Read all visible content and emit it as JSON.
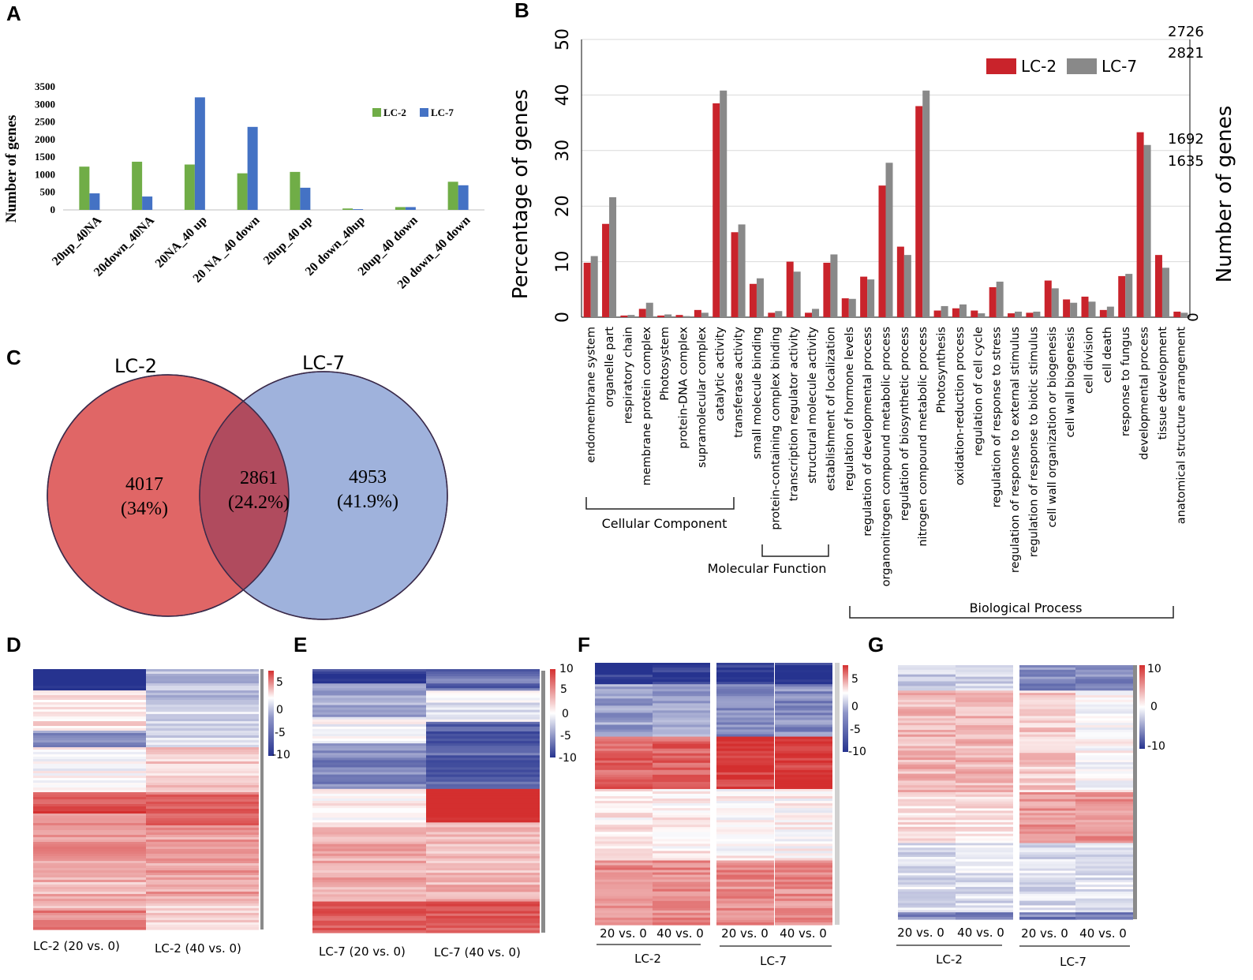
{
  "panel_labels": {
    "a": "A",
    "b": "B",
    "c": "C",
    "d": "D",
    "e": "E",
    "f": "F",
    "g": "G"
  },
  "chart_data": [
    {
      "panel": "A",
      "type": "bar",
      "ylabel": "Number of genes",
      "ylim": [
        0,
        3500
      ],
      "yticks": [
        0,
        500,
        1000,
        1500,
        2000,
        2500,
        3000,
        3500
      ],
      "categories": [
        "20up_40NA",
        "20down_40NA",
        "20NA_40 up",
        "20 NA _40 down",
        "20up_40 up",
        "20 down_40up",
        "20up_40 down",
        "20 down_40 down"
      ],
      "series": [
        {
          "name": "LC-2",
          "color": "#70ad47",
          "values": [
            1230,
            1370,
            1290,
            1040,
            1080,
            40,
            80,
            800
          ]
        },
        {
          "name": "LC-7",
          "color": "#4472c4",
          "values": [
            470,
            380,
            3200,
            2360,
            630,
            20,
            80,
            700
          ]
        }
      ],
      "legend_position": "top-right"
    },
    {
      "panel": "B",
      "type": "bar",
      "ylabel": "Percentage of genes",
      "y2label": "Number of genes",
      "ylim": [
        0,
        50
      ],
      "yticks": [
        0,
        10,
        20,
        30,
        40,
        50
      ],
      "right_axis_labels": [
        "2726",
        "2821",
        "1692",
        "1635",
        "0"
      ],
      "categories": [
        "endomembrane system",
        "organelle part",
        "respiratory chain",
        "membrane protein complex",
        "Photosystem",
        "protein-DNA complex",
        "supramolecular complex",
        "catalytic activity",
        "transferase activity",
        "small molecule binding",
        "protein-containing complex binding",
        "transcription regulator activity",
        "structural molecule activity",
        "establishment of localization",
        "regulation of hormone levels",
        "regulation of developmental process",
        "organonitrogen compound metabolic process",
        "regulation of biosynthetic process",
        "nitrogen compound metabolic process",
        "Photosynthesis",
        "oxidation-reduction process",
        "regulation of cell cycle",
        "regulation of response to stress",
        "regulation of response to external stimulus",
        "regulation of response to biotic stimulus",
        "cell wall organization or biogenesis",
        "cell wall biogenesis",
        "cell division",
        "cell death",
        "response to fungus",
        "developmental process",
        "tissue development",
        "anatomical structure arrangement"
      ],
      "series": [
        {
          "name": "LC-2",
          "color": "#c9232b",
          "values": [
            9.8,
            16.8,
            0.3,
            1.5,
            0.3,
            0.4,
            1.3,
            38.5,
            15.3,
            6.0,
            0.8,
            10.0,
            0.8,
            9.8,
            3.4,
            7.3,
            23.7,
            12.7,
            38.0,
            1.2,
            1.6,
            1.2,
            5.4,
            0.7,
            0.8,
            6.6,
            3.2,
            3.7,
            1.3,
            7.4,
            33.3,
            11.2,
            1.0
          ]
        },
        {
          "name": "LC-7",
          "color": "#898989",
          "values": [
            11.0,
            21.6,
            0.4,
            2.6,
            0.5,
            0.2,
            0.8,
            40.8,
            16.7,
            7.0,
            1.1,
            8.2,
            1.5,
            11.3,
            3.3,
            6.8,
            27.8,
            11.2,
            40.8,
            2.0,
            2.3,
            0.7,
            6.4,
            1.0,
            1.0,
            5.2,
            2.6,
            2.8,
            1.9,
            7.8,
            31.0,
            8.9,
            0.8
          ]
        }
      ],
      "groups": [
        "Cellular Component",
        "Molecular Function",
        "Biological Process"
      ],
      "legend_position": "top-right"
    }
  ],
  "venn": {
    "label_left": "LC-2",
    "label_right": "LC-7",
    "left_count": "4017",
    "left_pct": "(34%)",
    "mid_count": "2861",
    "mid_pct": "(24.2%)",
    "right_count": "4953",
    "right_pct": "(41.9%)"
  },
  "heatmaps": {
    "d": {
      "scale": [
        "5",
        "0",
        "-5",
        "-10"
      ],
      "cols": [
        "LC-2 (20 vs. 0)",
        "LC-2 (40 vs. 0)"
      ]
    },
    "e": {
      "scale": [
        "10",
        "5",
        "0",
        "-5",
        "-10"
      ],
      "cols": [
        "LC-7 (20 vs. 0)",
        "LC-7 (40 vs. 0)"
      ]
    },
    "f": {
      "scale": [
        "5",
        "0",
        "-5",
        "-10"
      ],
      "cols": [
        "20 vs. 0",
        "40 vs. 0",
        "20 vs. 0",
        "40 vs. 0"
      ],
      "groups": [
        "LC-2",
        "LC-7"
      ]
    },
    "g": {
      "scale": [
        "10",
        "0",
        "-10"
      ],
      "cols": [
        "20 vs. 0",
        "40 vs. 0",
        "20 vs. 0",
        "40 vs. 0"
      ],
      "groups": [
        "LC-2",
        "LC-7"
      ]
    }
  },
  "colors": {
    "red": "#d42f2f",
    "blue": "#26338f",
    "venn_left": "#e06666",
    "venn_right": "#9fb2dc",
    "venn_mid": "#b04b5e"
  }
}
